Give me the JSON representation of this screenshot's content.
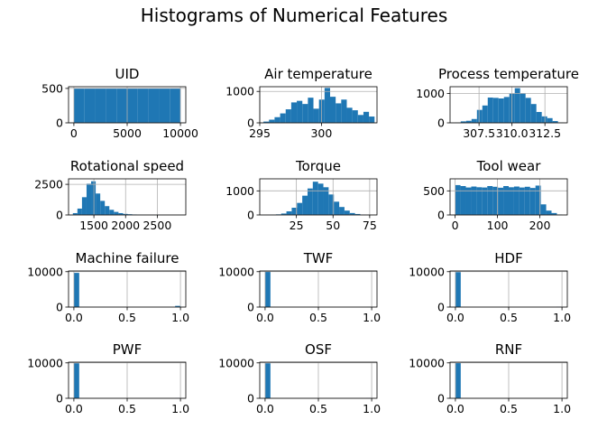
{
  "figure": {
    "title": "Histograms of Numerical Features"
  },
  "colors": {
    "bar": "#1f77b4",
    "grid": "#b0b0b0",
    "axis": "#000000"
  },
  "chart_data": [
    {
      "type": "bar",
      "title": "UID",
      "grid": true,
      "xlim": [
        -500,
        10500
      ],
      "ylim": [
        0,
        525
      ],
      "bins": [
        [
          1,
          1000,
          500
        ],
        [
          1000,
          2000,
          500
        ],
        [
          2000,
          3000,
          500
        ],
        [
          3000,
          4000,
          500
        ],
        [
          4000,
          5000,
          500
        ],
        [
          5000,
          6000,
          500
        ],
        [
          6000,
          7000,
          500
        ],
        [
          7000,
          8000,
          500
        ],
        [
          8000,
          9000,
          500
        ],
        [
          9000,
          10000,
          500
        ]
      ],
      "xticks": [
        0,
        5000,
        10000
      ],
      "xtick_labels": [
        "0",
        "5000",
        "10000"
      ],
      "yticks": [
        0,
        500
      ],
      "ytick_labels": [
        "0",
        "500"
      ]
    },
    {
      "type": "bar",
      "title": "Air temperature",
      "grid": true,
      "xlim": [
        295,
        304.5
      ],
      "ylim": [
        0,
        1150
      ],
      "bins": [
        [
          295.3,
          295.75,
          40
        ],
        [
          295.75,
          296.2,
          100
        ],
        [
          296.2,
          296.65,
          180
        ],
        [
          296.65,
          297.1,
          300
        ],
        [
          297.1,
          297.55,
          430
        ],
        [
          297.55,
          298,
          650
        ],
        [
          298,
          298.45,
          700
        ],
        [
          298.45,
          298.9,
          600
        ],
        [
          298.9,
          299.35,
          800
        ],
        [
          299.35,
          299.8,
          450
        ],
        [
          299.8,
          300.25,
          740
        ],
        [
          300.25,
          300.7,
          1110
        ],
        [
          300.7,
          301.15,
          830
        ],
        [
          301.15,
          301.6,
          620
        ],
        [
          301.6,
          302.05,
          740
        ],
        [
          302.05,
          302.5,
          480
        ],
        [
          302.5,
          302.95,
          400
        ],
        [
          302.95,
          303.4,
          250
        ],
        [
          303.4,
          303.85,
          350
        ],
        [
          303.85,
          304.3,
          200
        ]
      ],
      "xticks": [
        295,
        300
      ],
      "xtick_labels": [
        "295",
        "300"
      ],
      "yticks": [
        0,
        1000
      ],
      "ytick_labels": [
        "0",
        "1000"
      ]
    },
    {
      "type": "bar",
      "title": "Process temperature",
      "grid": true,
      "xlim": [
        305.3,
        314.2
      ],
      "ylim": [
        0,
        1230
      ],
      "bins": [
        [
          305.7,
          306.11,
          15
        ],
        [
          306.11,
          306.52,
          50
        ],
        [
          306.52,
          306.93,
          70
        ],
        [
          306.93,
          307.34,
          130
        ],
        [
          307.34,
          307.75,
          440
        ],
        [
          307.75,
          308.16,
          590
        ],
        [
          308.16,
          308.57,
          860
        ],
        [
          308.57,
          308.98,
          850
        ],
        [
          308.98,
          309.39,
          830
        ],
        [
          309.39,
          309.8,
          880
        ],
        [
          309.8,
          310.21,
          1000
        ],
        [
          310.21,
          310.62,
          1180
        ],
        [
          310.62,
          311.03,
          1010
        ],
        [
          311.03,
          311.44,
          850
        ],
        [
          311.44,
          311.85,
          640
        ],
        [
          311.85,
          312.26,
          370
        ],
        [
          312.26,
          312.67,
          220
        ],
        [
          312.67,
          313.08,
          160
        ],
        [
          313.08,
          313.49,
          60
        ],
        [
          313.49,
          313.9,
          15
        ]
      ],
      "xticks": [
        307.5,
        310.0,
        312.5
      ],
      "xtick_labels": [
        "307.5",
        "310.0",
        "312.5"
      ],
      "yticks": [
        0,
        1000
      ],
      "ytick_labels": [
        "0",
        "1000"
      ]
    },
    {
      "type": "bar",
      "title": "Rotational speed",
      "grid": true,
      "xlim": [
        1100,
        2950
      ],
      "ylim": [
        0,
        2950
      ],
      "bins": [
        [
          1168,
          1240,
          150
        ],
        [
          1240,
          1312,
          520
        ],
        [
          1312,
          1384,
          1450
        ],
        [
          1384,
          1456,
          2550
        ],
        [
          1456,
          1528,
          2750
        ],
        [
          1528,
          1600,
          1750
        ],
        [
          1600,
          1672,
          1150
        ],
        [
          1672,
          1744,
          720
        ],
        [
          1744,
          1816,
          420
        ],
        [
          1816,
          1888,
          250
        ],
        [
          1888,
          1960,
          150
        ],
        [
          1960,
          2032,
          90
        ],
        [
          2032,
          2104,
          60
        ],
        [
          2104,
          2176,
          40
        ],
        [
          2176,
          2248,
          25
        ],
        [
          2248,
          2320,
          15
        ],
        [
          2320,
          2392,
          10
        ],
        [
          2392,
          2464,
          8
        ],
        [
          2464,
          2536,
          5
        ],
        [
          2536,
          2608,
          3
        ],
        [
          2608,
          2680,
          2
        ],
        [
          2680,
          2752,
          1
        ],
        [
          2752,
          2824,
          1
        ],
        [
          2824,
          2886,
          1
        ]
      ],
      "xticks": [
        1500,
        2000,
        2500
      ],
      "xtick_labels": [
        "1500",
        "2000",
        "2500"
      ],
      "yticks": [
        0,
        2500
      ],
      "ytick_labels": [
        "0",
        "2500"
      ]
    },
    {
      "type": "bar",
      "title": "Torque",
      "grid": true,
      "xlim": [
        0,
        80
      ],
      "ylim": [
        0,
        1500
      ],
      "bins": [
        [
          3.8,
          7.4,
          3
        ],
        [
          7.4,
          11,
          10
        ],
        [
          11,
          14.6,
          25
        ],
        [
          14.6,
          18.2,
          60
        ],
        [
          18.2,
          21.8,
          150
        ],
        [
          21.8,
          25.4,
          300
        ],
        [
          25.4,
          29,
          500
        ],
        [
          29,
          32.6,
          800
        ],
        [
          32.6,
          36.2,
          1100
        ],
        [
          36.2,
          39.8,
          1380
        ],
        [
          39.8,
          43.4,
          1300
        ],
        [
          43.4,
          47,
          1150
        ],
        [
          47,
          50.6,
          850
        ],
        [
          50.6,
          54.2,
          550
        ],
        [
          54.2,
          57.8,
          330
        ],
        [
          57.8,
          61.4,
          180
        ],
        [
          61.4,
          65,
          80
        ],
        [
          65,
          68.6,
          40
        ],
        [
          68.6,
          72.2,
          15
        ],
        [
          72.2,
          76.6,
          5
        ]
      ],
      "xticks": [
        25,
        50,
        75
      ],
      "xtick_labels": [
        "25",
        "50",
        "75"
      ],
      "yticks": [
        0,
        1000
      ],
      "ytick_labels": [
        "0",
        "1000"
      ]
    },
    {
      "type": "bar",
      "title": "Tool wear",
      "grid": true,
      "xlim": [
        -12,
        265
      ],
      "ylim": [
        0,
        750
      ],
      "bins": [
        [
          0,
          12.65,
          620
        ],
        [
          12.65,
          25.3,
          600
        ],
        [
          25.3,
          37.95,
          570
        ],
        [
          37.95,
          50.6,
          590
        ],
        [
          50.6,
          63.25,
          575
        ],
        [
          63.25,
          75.9,
          570
        ],
        [
          75.9,
          88.55,
          600
        ],
        [
          88.55,
          101.2,
          585
        ],
        [
          101.2,
          113.85,
          565
        ],
        [
          113.85,
          126.5,
          600
        ],
        [
          126.5,
          139.15,
          575
        ],
        [
          139.15,
          151.8,
          590
        ],
        [
          151.8,
          164.45,
          570
        ],
        [
          164.45,
          177.1,
          585
        ],
        [
          177.1,
          189.75,
          560
        ],
        [
          189.75,
          202.4,
          610
        ],
        [
          202.4,
          215.05,
          220
        ],
        [
          215.05,
          227.7,
          90
        ],
        [
          227.7,
          240.35,
          40
        ],
        [
          240.35,
          253,
          10
        ]
      ],
      "xticks": [
        0,
        100,
        200
      ],
      "xtick_labels": [
        "0",
        "100",
        "200"
      ],
      "yticks": [
        0,
        500
      ],
      "ytick_labels": [
        "0",
        "500"
      ]
    },
    {
      "type": "bar",
      "title": "Machine failure",
      "grid": true,
      "xlim": [
        -0.05,
        1.05
      ],
      "ylim": [
        0,
        10200
      ],
      "bins": [
        [
          0,
          0.05,
          9661
        ],
        [
          0.95,
          1.0,
          339
        ]
      ],
      "xticks": [
        0.0,
        0.5,
        1.0
      ],
      "xtick_labels": [
        "0.0",
        "0.5",
        "1.0"
      ],
      "yticks": [
        0,
        10000
      ],
      "ytick_labels": [
        "0",
        "10000"
      ]
    },
    {
      "type": "bar",
      "title": "TWF",
      "grid": true,
      "xlim": [
        -0.05,
        1.05
      ],
      "ylim": [
        0,
        10200
      ],
      "bins": [
        [
          0,
          0.05,
          9954
        ],
        [
          0.95,
          1.0,
          46
        ]
      ],
      "xticks": [
        0.0,
        0.5,
        1.0
      ],
      "xtick_labels": [
        "0.0",
        "0.5",
        "1.0"
      ],
      "yticks": [
        0,
        10000
      ],
      "ytick_labels": [
        "0",
        "10000"
      ]
    },
    {
      "type": "bar",
      "title": "HDF",
      "grid": true,
      "xlim": [
        -0.05,
        1.05
      ],
      "ylim": [
        0,
        10200
      ],
      "bins": [
        [
          0,
          0.05,
          9885
        ],
        [
          0.95,
          1.0,
          115
        ]
      ],
      "xticks": [
        0.0,
        0.5,
        1.0
      ],
      "xtick_labels": [
        "0.0",
        "0.5",
        "1.0"
      ],
      "yticks": [
        0,
        10000
      ],
      "ytick_labels": [
        "0",
        "10000"
      ]
    },
    {
      "type": "bar",
      "title": "PWF",
      "grid": true,
      "xlim": [
        -0.05,
        1.05
      ],
      "ylim": [
        0,
        10200
      ],
      "bins": [
        [
          0,
          0.05,
          9905
        ],
        [
          0.95,
          1.0,
          95
        ]
      ],
      "xticks": [
        0.0,
        0.5,
        1.0
      ],
      "xtick_labels": [
        "0.0",
        "0.5",
        "1.0"
      ],
      "yticks": [
        0,
        10000
      ],
      "ytick_labels": [
        "0",
        "10000"
      ]
    },
    {
      "type": "bar",
      "title": "OSF",
      "grid": true,
      "xlim": [
        -0.05,
        1.05
      ],
      "ylim": [
        0,
        10200
      ],
      "bins": [
        [
          0,
          0.05,
          9902
        ],
        [
          0.95,
          1.0,
          98
        ]
      ],
      "xticks": [
        0.0,
        0.5,
        1.0
      ],
      "xtick_labels": [
        "0.0",
        "0.5",
        "1.0"
      ],
      "yticks": [
        0,
        10000
      ],
      "ytick_labels": [
        "0",
        "10000"
      ]
    },
    {
      "type": "bar",
      "title": "RNF",
      "grid": true,
      "xlim": [
        -0.05,
        1.05
      ],
      "ylim": [
        0,
        10200
      ],
      "bins": [
        [
          0,
          0.05,
          9981
        ],
        [
          0.95,
          1.0,
          19
        ]
      ],
      "xticks": [
        0.0,
        0.5,
        1.0
      ],
      "xtick_labels": [
        "0.0",
        "0.5",
        "1.0"
      ],
      "yticks": [
        0,
        10000
      ],
      "ytick_labels": [
        "0",
        "10000"
      ]
    }
  ]
}
